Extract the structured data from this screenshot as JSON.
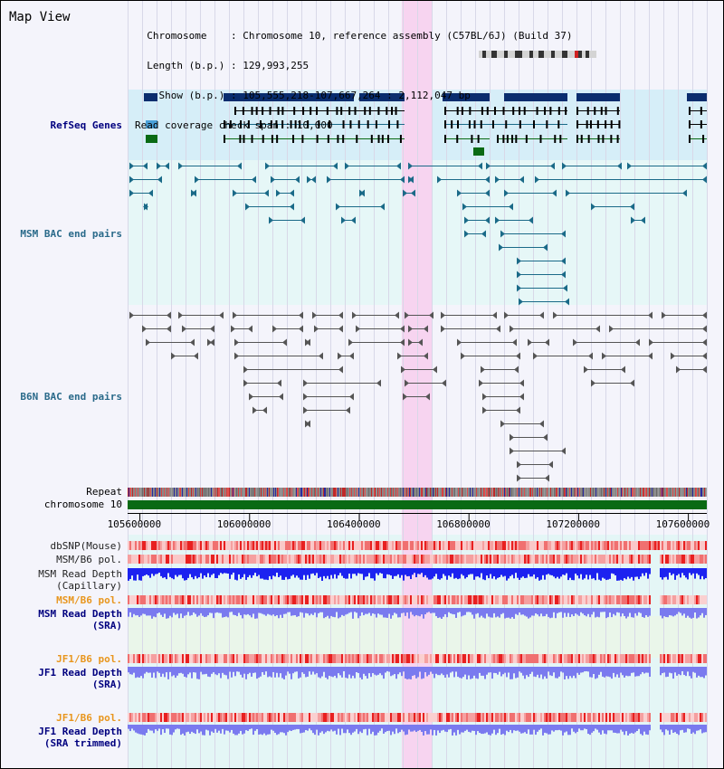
{
  "view": {
    "title": "Map View",
    "info": {
      "chromosome_key": "Chromosome",
      "chromosome_value": "Chromosome 10, reference assembly (C57BL/6J) (Build 37)",
      "length_key": "Length (b.p.)",
      "length_value": "129,993,255",
      "show_key": "Show (b.p.)",
      "show_value": "105,555,218-107,667,264 : 2,112,047 bp",
      "coverage_key": "Read coverage check span",
      "coverage_value": "10,000"
    }
  },
  "axis": {
    "start": 105555218,
    "end": 107667264,
    "ticks": [
      "105600000",
      "106000000",
      "106400000",
      "106800000",
      "107200000",
      "107600000"
    ],
    "tick_values": [
      105600000,
      106000000,
      106400000,
      106800000,
      107200000,
      107600000
    ],
    "highlight": [
      106555000,
      106665000
    ]
  },
  "tracks": {
    "refseq": "RefSeq Genes",
    "msm_bac": "MSM BAC end pairs",
    "b6n_bac": "B6N BAC end pairs",
    "repeat": "Repeat",
    "chromosome": "chromosome 10",
    "dbsnp": "dbSNP(Mouse)",
    "msm_b6_pol": "MSM/B6 pol.",
    "msm_depth_1": "MSM Read Depth",
    "msm_depth_2": "(Capillary)",
    "msm_b6_pol_sra": "MSM/B6 pol.",
    "msm_sra_1": "MSM Read Depth",
    "msm_sra_2": "(SRA)",
    "jf1_pol_1": "JF1/B6 pol.",
    "jf1_depth_1": "JF1 Read Depth",
    "jf1_depth_1b": "(SRA)",
    "jf1_pol_2": "JF1/B6 pol.",
    "jf1_depth_2": "JF1 Read Depth",
    "jf1_depth_2b": "(SRA trimmed)"
  },
  "colors": {
    "refseq_dark": "#0a2d6e",
    "refseq_light": "#4aa0d8",
    "gene_green": "#0a6a14",
    "msm_bac": "#1a6a88",
    "b6n_bac": "#555555",
    "depth_blue": "#1c22f0",
    "depth_light": "#7a7aef",
    "pol_red": "#e83030",
    "highlight": "#f7d4f0",
    "label_blue": "#00007f",
    "label_orange": "#e8961e",
    "label_teal": "#2a6a8a"
  }
}
